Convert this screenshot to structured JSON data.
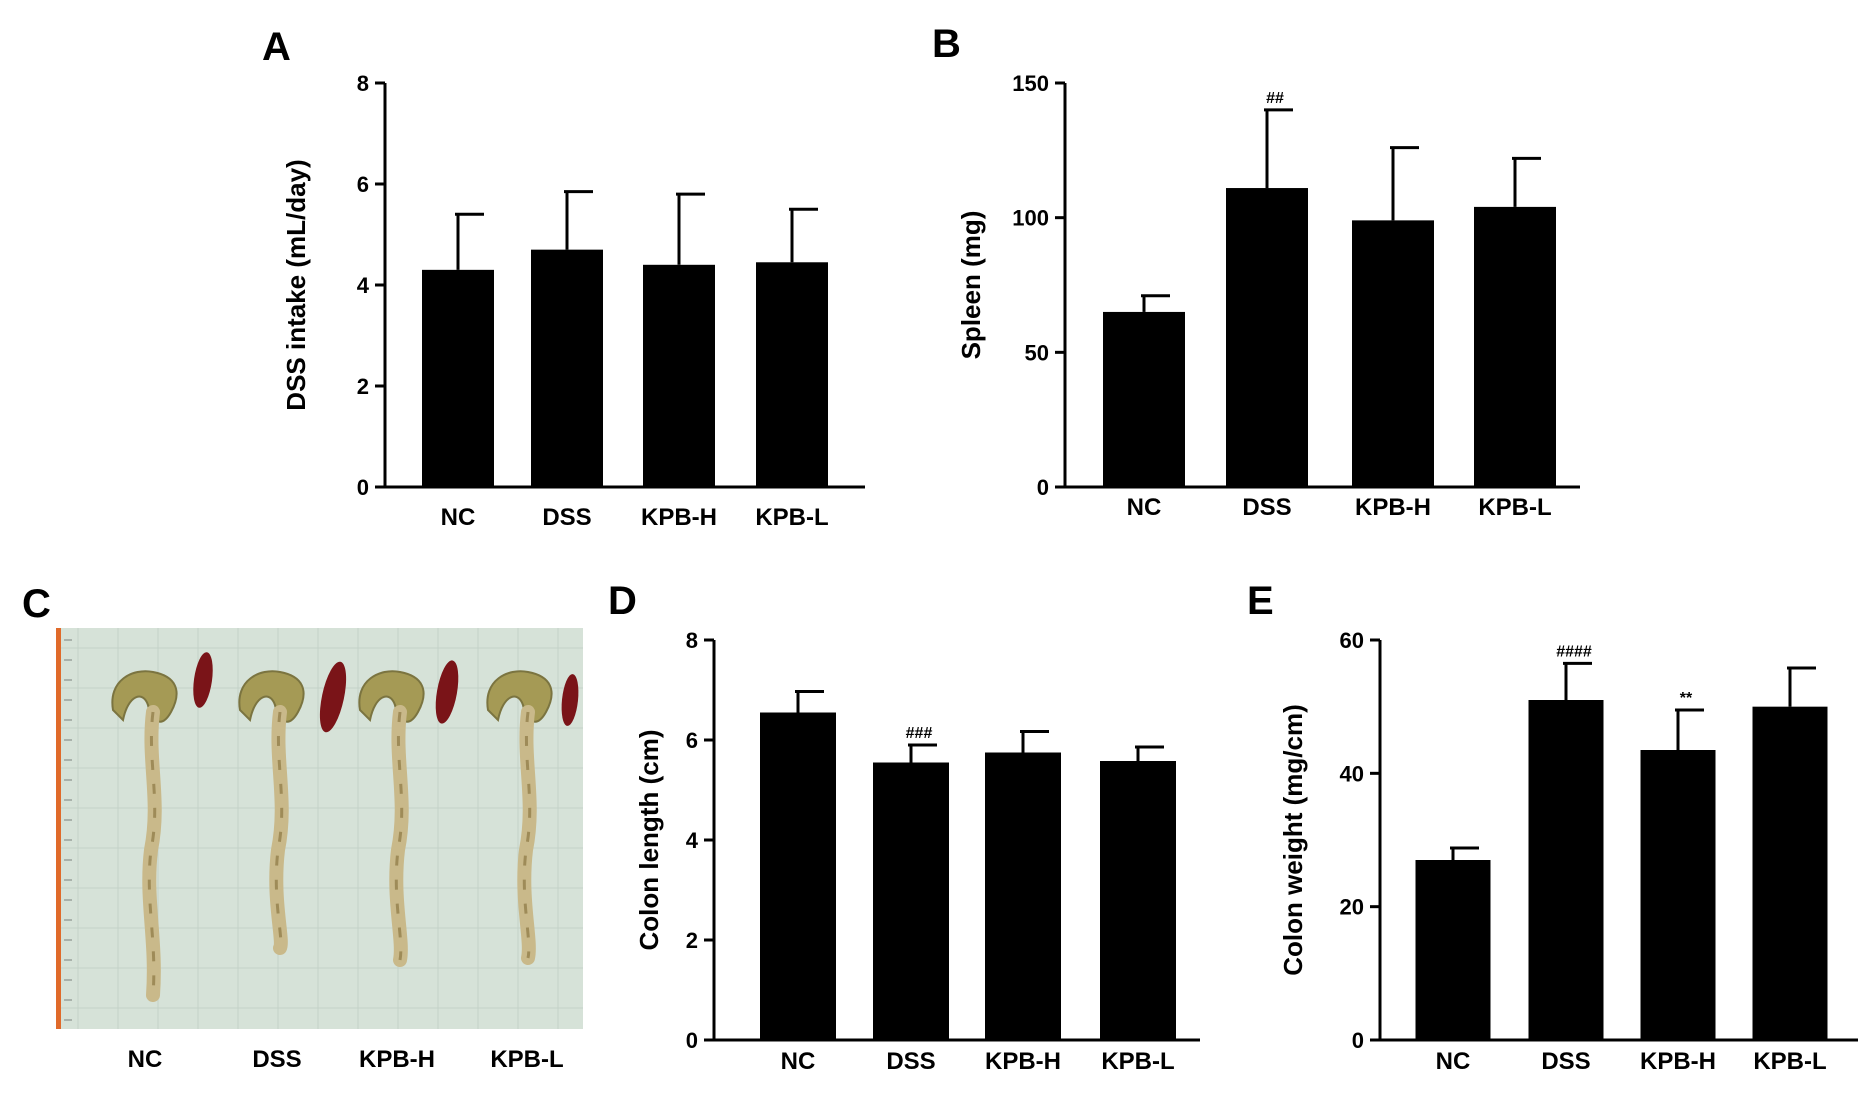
{
  "panels": [
    {
      "letter": "A",
      "chart_data": {
        "type": "bar",
        "categories": [
          "NC",
          "DSS",
          "KPB-H",
          "KPB-L"
        ],
        "values": [
          4.3,
          4.7,
          4.4,
          4.45
        ],
        "errors": [
          1.1,
          1.15,
          1.4,
          1.05
        ],
        "annotations": [
          "",
          "",
          "",
          ""
        ],
        "ylabel": "DSS intake (mL/day)",
        "ylim": [
          0,
          8
        ],
        "yticks": [
          0,
          2,
          4,
          6,
          8
        ],
        "bar_color": "#000000"
      }
    },
    {
      "letter": "B",
      "chart_data": {
        "type": "bar",
        "categories": [
          "NC",
          "DSS",
          "KPB-H",
          "KPB-L"
        ],
        "values": [
          65,
          111,
          99,
          104
        ],
        "errors": [
          6,
          29,
          27,
          18
        ],
        "annotations": [
          "",
          "##",
          "",
          ""
        ],
        "ylabel": "Spleen (mg)",
        "ylim": [
          0,
          150
        ],
        "yticks": [
          0,
          50,
          100,
          150
        ],
        "bar_color": "#000000"
      }
    },
    {
      "letter": "C",
      "photo": {
        "categories": [
          "NC",
          "DSS",
          "KPB-H",
          "KPB-L"
        ],
        "background_color": "#d6e2d8",
        "ruler_color": "#e06a2a",
        "colon_color": "#c9b98a",
        "spleen_color": "#7a1418"
      }
    },
    {
      "letter": "D",
      "chart_data": {
        "type": "bar",
        "categories": [
          "NC",
          "DSS",
          "KPB-H",
          "KPB-L"
        ],
        "values": [
          6.55,
          5.55,
          5.75,
          5.58
        ],
        "errors": [
          0.42,
          0.35,
          0.42,
          0.28
        ],
        "annotations": [
          "",
          "###",
          "",
          ""
        ],
        "ylabel": "Colon length (cm)",
        "ylim": [
          0,
          8
        ],
        "yticks": [
          0,
          2,
          4,
          6,
          8
        ],
        "bar_color": "#000000"
      }
    },
    {
      "letter": "E",
      "chart_data": {
        "type": "bar",
        "categories": [
          "NC",
          "DSS",
          "KPB-H",
          "KPB-L"
        ],
        "values": [
          27,
          51,
          43.5,
          50
        ],
        "errors": [
          1.8,
          5.5,
          6,
          5.8
        ],
        "annotations": [
          "",
          "####",
          "**",
          ""
        ],
        "ylabel": "Colon weight (mg/cm)",
        "ylim": [
          0,
          60
        ],
        "yticks": [
          0,
          20,
          40,
          60
        ],
        "bar_color": "#000000"
      }
    }
  ]
}
